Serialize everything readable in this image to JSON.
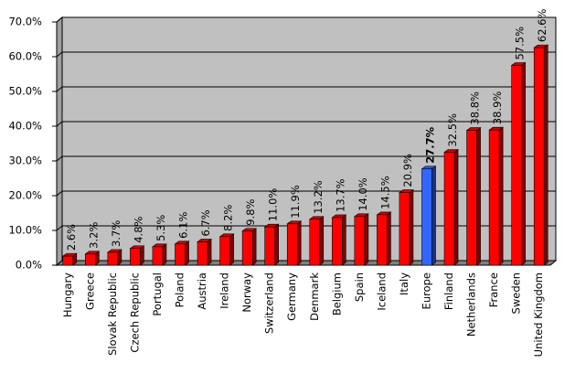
{
  "chart_data": {
    "type": "bar",
    "categories": [
      "Hungary",
      "Greece",
      "Slovak Republic",
      "Czech Republic",
      "Portugal",
      "Poland",
      "Austria",
      "Ireland",
      "Norway",
      "Switzerland",
      "Germany",
      "Denmark",
      "Belgium",
      "Spain",
      "Iceland",
      "Italy",
      "Europe",
      "Finland",
      "Netherlands",
      "France",
      "Sweden",
      "United Kingdom"
    ],
    "values": [
      2.6,
      3.2,
      3.7,
      4.8,
      5.3,
      6.1,
      6.7,
      8.2,
      9.8,
      11.0,
      11.9,
      13.2,
      13.7,
      14.0,
      14.5,
      20.9,
      27.7,
      32.5,
      38.8,
      38.9,
      57.5,
      62.6
    ],
    "value_labels": [
      "2.6%",
      "3.2%",
      "3.7%",
      "4.8%",
      "5.3%",
      "6.1%",
      "6.7%",
      "8.2%",
      "9.8%",
      "11.0%",
      "11.9%",
      "13.2%",
      "13.7%",
      "14.0%",
      "14.5%",
      "20.9%",
      "27.7%",
      "32.5%",
      "38.8%",
      "38.9%",
      "57.5%",
      "62.6%"
    ],
    "colors": [
      "#ff0000",
      "#ff0000",
      "#ff0000",
      "#ff0000",
      "#ff0000",
      "#ff0000",
      "#ff0000",
      "#ff0000",
      "#ff0000",
      "#ff0000",
      "#ff0000",
      "#ff0000",
      "#ff0000",
      "#ff0000",
      "#ff0000",
      "#ff0000",
      "#3366ff",
      "#ff0000",
      "#ff0000",
      "#ff0000",
      "#ff0000",
      "#ff0000"
    ],
    "ylim": [
      0,
      70
    ],
    "yticks": [
      {
        "value": 0,
        "label": "0.0%"
      },
      {
        "value": 10,
        "label": "10.0%"
      },
      {
        "value": 20,
        "label": "20.0%"
      },
      {
        "value": 30,
        "label": "30.0%"
      },
      {
        "value": 40,
        "label": "40.0%"
      },
      {
        "value": 50,
        "label": "50.0%"
      },
      {
        "value": 60,
        "label": "60.0%"
      },
      {
        "value": 70,
        "label": "70.0%"
      }
    ],
    "grid": true
  }
}
